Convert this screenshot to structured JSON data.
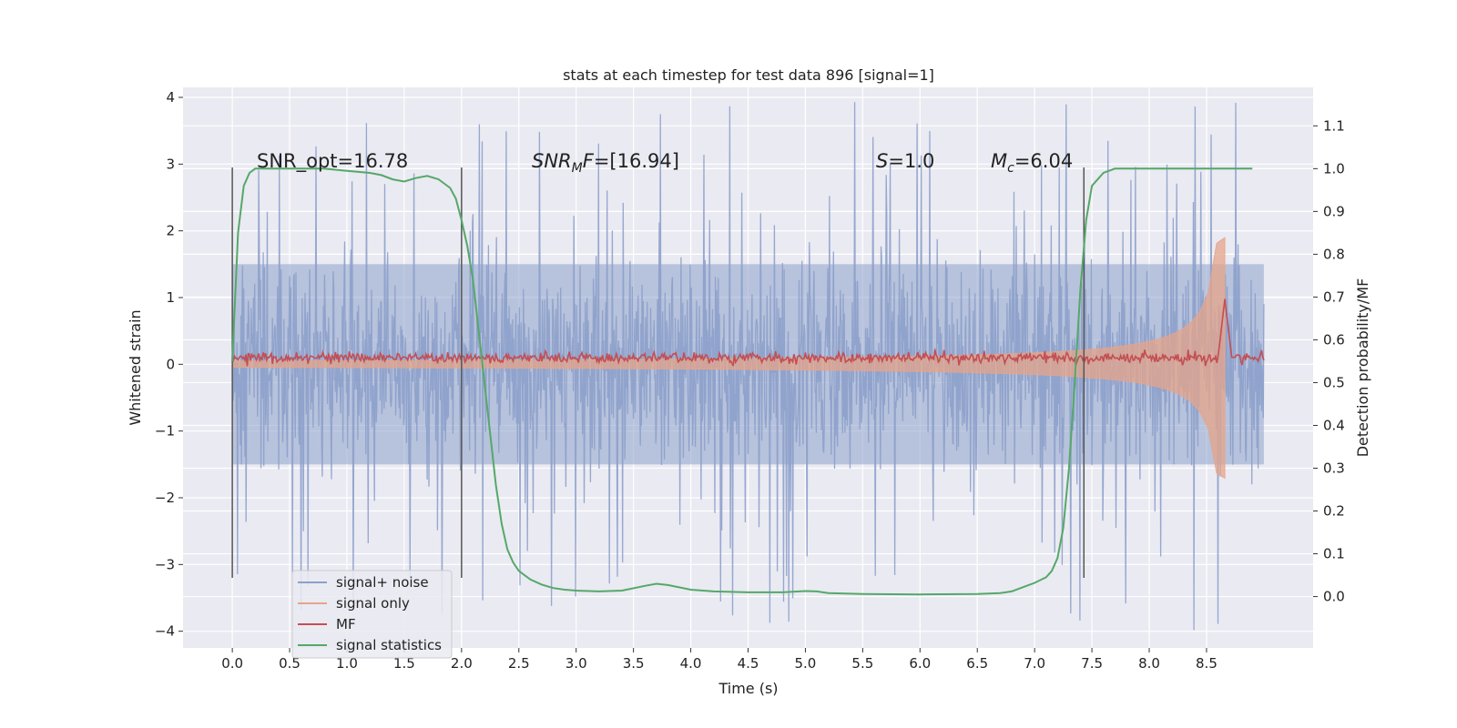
{
  "chart_data": {
    "type": "line",
    "title": "stats at each timestep for test data 896 [signal=1]",
    "xlabel": "Time (s)",
    "ylabel": "Whitened strain",
    "y2label": "Detection probability/MF",
    "xlim": [
      -0.43,
      9.43
    ],
    "ylim": [
      -4.25,
      4.15
    ],
    "y2lim": [
      -0.12,
      1.19
    ],
    "xticks": [
      0.0,
      0.5,
      1.0,
      1.5,
      2.0,
      2.5,
      3.0,
      3.5,
      4.0,
      4.5,
      5.0,
      5.5,
      6.0,
      6.5,
      7.0,
      7.5,
      8.0,
      8.5
    ],
    "xtick_labels": [
      "0.0",
      "0.5",
      "1.0",
      "1.5",
      "2.0",
      "2.5",
      "3.0",
      "3.5",
      "4.0",
      "4.5",
      "5.0",
      "5.5",
      "6.0",
      "6.5",
      "7.0",
      "7.5",
      "8.0",
      "8.5"
    ],
    "yticks": [
      4,
      3,
      2,
      1,
      0,
      -1,
      -2,
      -3,
      -4
    ],
    "ytick_labels": [
      "4",
      "3",
      "2",
      "1",
      "0",
      "−1",
      "−2",
      "−3",
      "−4"
    ],
    "y2ticks": [
      1.1,
      1.0,
      0.9,
      0.8,
      0.7,
      0.6,
      0.5,
      0.4,
      0.3,
      0.2,
      0.1,
      0.0
    ],
    "y2tick_labels": [
      "1.1",
      "1.0",
      "0.9",
      "0.8",
      "0.7",
      "0.6",
      "0.5",
      "0.4",
      "0.3",
      "0.2",
      "0.1",
      "0.0"
    ],
    "grid": true,
    "time_range": [
      0.0,
      9.0
    ],
    "merger_time": 8.66,
    "noise_envelope": {
      "base_amplitude": 1.5,
      "spike_max": 4.0
    },
    "signal_envelope": {
      "start_amplitude": 0.05,
      "peak_amplitude": 1.9,
      "merger_time": 8.66
    },
    "mf_series": {
      "baseline": 0.1,
      "peak_value": 0.98,
      "peak_time": 8.66
    },
    "vertical_markers": [
      {
        "name": "window-1-start",
        "x": 0.0,
        "y_range": [
          -3.2,
          2.95
        ]
      },
      {
        "name": "window-1-end",
        "x": 2.0,
        "y_range": [
          -3.2,
          2.95
        ]
      },
      {
        "name": "merger-window",
        "x": 7.43,
        "y_range": [
          -3.2,
          2.95
        ]
      }
    ],
    "series": [
      {
        "name": "signal+ noise",
        "color": "#8da0cb"
      },
      {
        "name": "signal only",
        "color": "#e6a48a"
      },
      {
        "name": "MF",
        "color": "#c44e52"
      },
      {
        "name": "signal statistics",
        "color": "#55a868",
        "axis": "right",
        "x": [
          0.0,
          0.05,
          0.1,
          0.15,
          0.2,
          0.3,
          0.5,
          0.8,
          1.0,
          1.2,
          1.3,
          1.4,
          1.5,
          1.6,
          1.7,
          1.8,
          1.9,
          1.95,
          2.0,
          2.05,
          2.1,
          2.15,
          2.2,
          2.25,
          2.3,
          2.35,
          2.4,
          2.45,
          2.5,
          2.6,
          2.7,
          2.8,
          2.9,
          3.0,
          3.2,
          3.4,
          3.6,
          3.7,
          3.8,
          4.0,
          4.2,
          4.5,
          4.8,
          5.0,
          5.1,
          5.2,
          5.5,
          6.0,
          6.5,
          6.7,
          6.8,
          6.9,
          7.0,
          7.1,
          7.15,
          7.2,
          7.25,
          7.3,
          7.35,
          7.4,
          7.45,
          7.5,
          7.6,
          7.7,
          8.0,
          8.5,
          8.9
        ],
        "values": [
          0.55,
          0.85,
          0.96,
          0.99,
          1.0,
          1.0,
          1.0,
          1.0,
          0.995,
          0.99,
          0.985,
          0.975,
          0.97,
          0.978,
          0.983,
          0.975,
          0.955,
          0.93,
          0.88,
          0.82,
          0.74,
          0.62,
          0.5,
          0.38,
          0.26,
          0.17,
          0.11,
          0.08,
          0.06,
          0.04,
          0.028,
          0.02,
          0.016,
          0.014,
          0.012,
          0.014,
          0.025,
          0.03,
          0.027,
          0.016,
          0.012,
          0.01,
          0.01,
          0.013,
          0.012,
          0.008,
          0.006,
          0.005,
          0.006,
          0.008,
          0.012,
          0.022,
          0.032,
          0.045,
          0.06,
          0.09,
          0.16,
          0.3,
          0.5,
          0.72,
          0.88,
          0.96,
          0.99,
          1.0,
          1.0,
          1.0,
          1.0
        ]
      }
    ],
    "annotations": [
      {
        "id": "snr-opt",
        "text": "SNR_opt=16.78"
      },
      {
        "id": "snr-mf",
        "text": "=[16.94]",
        "prefix_main": "SNR",
        "prefix_sub": "M",
        "prefix_tail": "F"
      },
      {
        "id": "s-value",
        "text": "=1.0",
        "prefix_main": "S"
      },
      {
        "id": "mc-value",
        "text": "=6.04",
        "prefix_main": "M",
        "prefix_sub": "c"
      }
    ],
    "legend": {
      "position": "lower-left",
      "entries": [
        "signal+ noise",
        "signal only",
        "MF",
        "signal statistics"
      ]
    }
  }
}
